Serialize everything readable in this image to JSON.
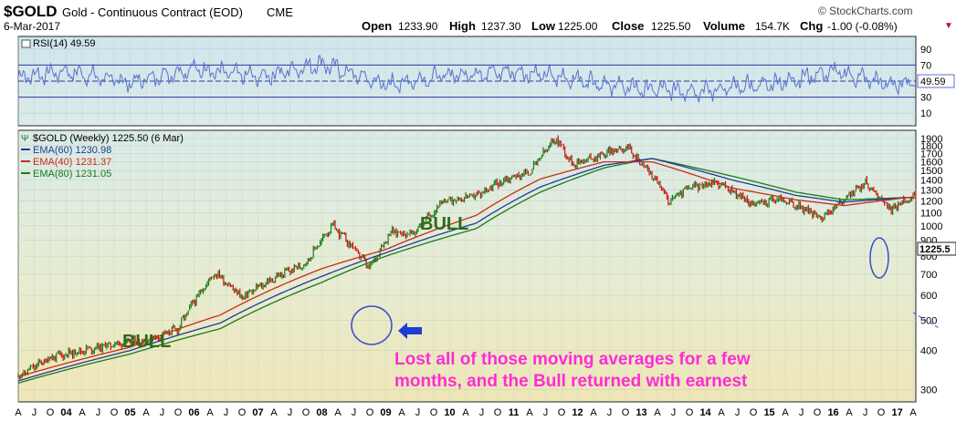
{
  "header": {
    "symbol": "$GOLD",
    "name": "Gold - Continuous Contract (EOD)",
    "exchange": "CME",
    "date": "6-Mar-2017",
    "brand": "© StockCharts.com",
    "open_label": "Open",
    "open_value": "1233.90",
    "high_label": "High",
    "high_value": "1237.30",
    "low_label": "Low",
    "low_value": "1225.00",
    "close_label": "Close",
    "close_value": "1225.50",
    "volume_label": "Volume",
    "volume_value": "154.7K",
    "chg_label": "Chg",
    "chg_value": "-1.00 (-0.08%)"
  },
  "rsi_panel": {
    "legend": "RSI(14) 49.59",
    "current_label": "49.59",
    "ticks": [
      "90",
      "70",
      "50",
      "30",
      "10"
    ]
  },
  "price_panel": {
    "legend": "$GOLD (Weekly) 1225.50 (6 Mar)",
    "ema_legend": [
      {
        "text": "EMA(60) 1230.98",
        "color": "#1f3b9b"
      },
      {
        "text": "EMA(40) 1231.37",
        "color": "#cc2a1e"
      },
      {
        "text": "EMA(80) 1231.05",
        "color": "#1a7a1a"
      }
    ],
    "current_label": "1225.5",
    "y_ticks": [
      "1900",
      "1800",
      "1700",
      "1600",
      "1500",
      "1400",
      "1300",
      "1200",
      "1100",
      "1000",
      "900",
      "800",
      "700",
      "600",
      "500",
      "400",
      "300"
    ]
  },
  "x_axis": {
    "labels": [
      "A",
      "J",
      "O",
      "04",
      "A",
      "J",
      "O",
      "05",
      "A",
      "J",
      "O",
      "06",
      "A",
      "J",
      "O",
      "07",
      "A",
      "J",
      "O",
      "08",
      "A",
      "J",
      "O",
      "09",
      "A",
      "J",
      "O",
      "10",
      "A",
      "J",
      "O",
      "11",
      "A",
      "J",
      "O",
      "12",
      "A",
      "J",
      "O",
      "13",
      "A",
      "J",
      "O",
      "14",
      "A",
      "J",
      "O",
      "15",
      "A",
      "J",
      "O",
      "16",
      "A",
      "J",
      "O",
      "17",
      "A"
    ]
  },
  "annotations": {
    "bull_left": "BULL",
    "bull_mid": "BULL",
    "note_line1": "Lost all of those moving averages for a few",
    "note_line2": "months, and the Bull returned with earnest"
  },
  "colors": {
    "price_up": "#1a7a1a",
    "price_down": "#cc1010",
    "ema60": "#1f3b9b",
    "ema40": "#cc2a1e",
    "ema80": "#1a7a1a",
    "rsi_line": "#5b6fd0",
    "annotation_text": "#ff2bd6",
    "bull_text": "#2e6b1a",
    "circle": "#3b4cc8"
  },
  "chart_data": [
    {
      "type": "line",
      "title": "RSI(14) 49.59",
      "series": [
        {
          "name": "RSI(14)",
          "x": [
            "2003-04",
            "2004-01",
            "2005-01",
            "2006-01",
            "2007-01",
            "2008-01",
            "2009-01",
            "2010-01",
            "2011-01",
            "2012-01",
            "2013-01",
            "2014-01",
            "2015-01",
            "2016-01",
            "2017-01",
            "2017-03"
          ],
          "values": [
            55,
            62,
            48,
            66,
            55,
            72,
            45,
            58,
            62,
            52,
            40,
            38,
            46,
            62,
            44,
            49.59
          ]
        }
      ],
      "ylim": [
        0,
        100
      ],
      "reference_lines": [
        70,
        50,
        30
      ]
    },
    {
      "type": "line",
      "title": "$GOLD (Weekly) 1225.50 (6 Mar)",
      "series": [
        {
          "name": "$GOLD",
          "x": [
            "2003-04",
            "2003-10",
            "2004-04",
            "2004-10",
            "2005-04",
            "2005-10",
            "2006-05",
            "2006-10",
            "2007-04",
            "2007-10",
            "2008-03",
            "2008-10",
            "2009-02",
            "2009-06",
            "2009-12",
            "2010-06",
            "2010-12",
            "2011-04",
            "2011-09",
            "2011-12",
            "2012-04",
            "2012-10",
            "2013-04",
            "2013-06",
            "2013-10",
            "2014-03",
            "2014-10",
            "2015-03",
            "2015-11",
            "2016-07",
            "2016-12",
            "2017-03"
          ],
          "values": [
            330,
            380,
            400,
            420,
            430,
            470,
            710,
            590,
            680,
            760,
            1000,
            730,
            960,
            940,
            1200,
            1250,
            1420,
            1480,
            1900,
            1580,
            1650,
            1790,
            1380,
            1200,
            1320,
            1380,
            1170,
            1220,
            1060,
            1370,
            1120,
            1225.5
          ]
        },
        {
          "name": "EMA(60)",
          "x": [
            "2003-04",
            "2005-01",
            "2006-06",
            "2008-01",
            "2009-01",
            "2010-06",
            "2011-06",
            "2012-06",
            "2013-03",
            "2014-06",
            "2015-06",
            "2016-03",
            "2017-03"
          ],
          "values": [
            320,
            400,
            490,
            690,
            820,
            1020,
            1330,
            1560,
            1640,
            1400,
            1250,
            1190,
            1230.98
          ]
        },
        {
          "name": "EMA(40)",
          "x": [
            "2003-04",
            "2005-01",
            "2006-06",
            "2008-01",
            "2009-01",
            "2010-06",
            "2011-06",
            "2012-06",
            "2013-03",
            "2014-06",
            "2015-06",
            "2016-03",
            "2017-03"
          ],
          "values": [
            330,
            410,
            520,
            730,
            840,
            1080,
            1410,
            1600,
            1600,
            1320,
            1210,
            1160,
            1231.37
          ]
        },
        {
          "name": "EMA(80)",
          "x": [
            "2003-04",
            "2005-01",
            "2006-06",
            "2008-01",
            "2009-01",
            "2010-06",
            "2011-06",
            "2012-06",
            "2013-03",
            "2014-06",
            "2015-06",
            "2016-03",
            "2017-03"
          ],
          "values": [
            315,
            390,
            470,
            660,
            800,
            980,
            1280,
            1530,
            1640,
            1440,
            1280,
            1210,
            1231.05
          ]
        }
      ],
      "ylim": [
        280,
        1950
      ],
      "yscale": "log",
      "grid": true
    }
  ]
}
